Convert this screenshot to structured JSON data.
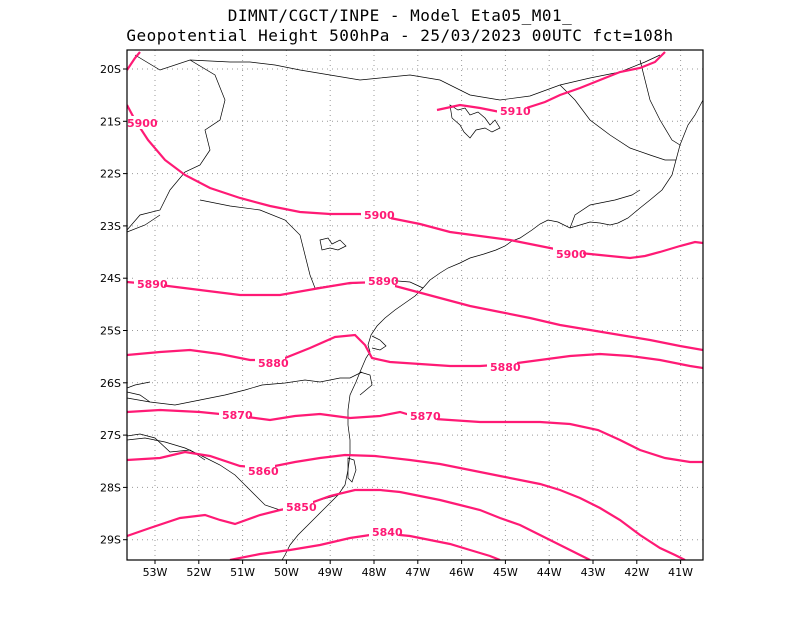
{
  "header": {
    "line1": "DIMNT/CGCT/INPE -   Model Eta05_M01_",
    "line2": "Geopotential Height 500hPa -  25/03/2023 00UTC fct=108h"
  },
  "colors": {
    "contour": "#ff1a75",
    "coast": "#000000",
    "grid": "#999999",
    "frame": "#000000"
  },
  "axes": {
    "lat_labels": [
      "20S",
      "21S",
      "22S",
      "23S",
      "24S",
      "25S",
      "26S",
      "27S",
      "28S",
      "29S"
    ],
    "lon_labels": [
      "53W",
      "52W",
      "51W",
      "50W",
      "49W",
      "48W",
      "47W",
      "46W",
      "45W",
      "44W",
      "43W",
      "42W",
      "41W"
    ]
  },
  "contours": [
    {
      "value": "5910",
      "label": "5910"
    },
    {
      "value": "5900",
      "label": "5900"
    },
    {
      "value": "5890",
      "label": "5890"
    },
    {
      "value": "5880",
      "label": "5880"
    },
    {
      "value": "5870",
      "label": "5870"
    },
    {
      "value": "5860",
      "label": "5860"
    },
    {
      "value": "5850",
      "label": "5850"
    },
    {
      "value": "5840",
      "label": "5840"
    }
  ],
  "contour_labels": [
    {
      "text": "5910"
    },
    {
      "text": "5900"
    },
    {
      "text": "5900"
    },
    {
      "text": "5900"
    },
    {
      "text": "5890"
    },
    {
      "text": "5890"
    },
    {
      "text": "5880"
    },
    {
      "text": "5880"
    },
    {
      "text": "5870"
    },
    {
      "text": "5870"
    },
    {
      "text": "5860"
    },
    {
      "text": "5850"
    },
    {
      "text": "5840"
    }
  ]
}
